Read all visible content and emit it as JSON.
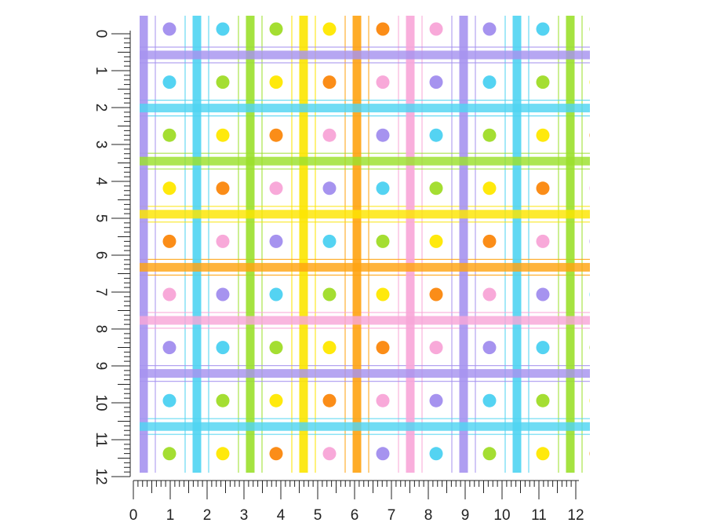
{
  "ruler": {
    "unit_labels": [
      "0",
      "1",
      "2",
      "3",
      "4",
      "5",
      "6",
      "7",
      "8",
      "9",
      "10",
      "11",
      "12"
    ],
    "minor_divisions_per_unit": 8
  },
  "pattern": {
    "name": "plaid-polka-dot",
    "colors": {
      "purple": "#a693ef",
      "blue": "#4fd4f2",
      "green": "#9be02c",
      "yellow": "#fce500",
      "orange": "#ffa311",
      "pink": "#f8a6d8"
    },
    "dot_colors": {
      "purple": "#a693ef",
      "blue": "#54d3f2",
      "green": "#a4de32",
      "yellow": "#ffe90c",
      "orange": "#fb8d18",
      "pink": "#f8a9d9"
    },
    "vertical_stripe_order": [
      "purple",
      "blue",
      "green",
      "yellow",
      "orange",
      "pink",
      "purple",
      "blue",
      "green"
    ],
    "horizontal_stripe_order": [
      "purple",
      "blue",
      "green",
      "yellow",
      "orange",
      "pink",
      "purple",
      "blue"
    ],
    "dot_color_cycle": [
      "purple",
      "blue",
      "green",
      "yellow",
      "orange",
      "pink"
    ]
  }
}
